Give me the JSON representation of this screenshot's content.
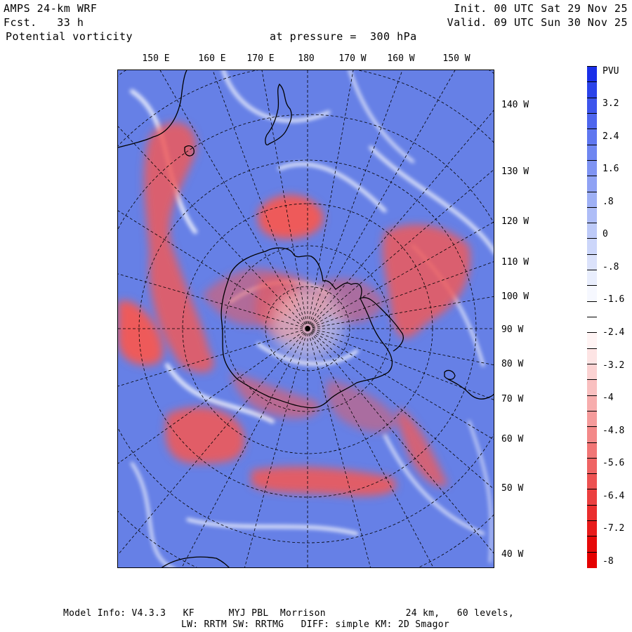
{
  "header": {
    "model": "AMPS 24-km WRF",
    "forecast": "Fcst.   33 h",
    "field": "Potential vorticity",
    "level": "at pressure =  300 hPa",
    "init": "Init. 00 UTC Sat 29 Nov 25",
    "valid": "Valid. 09 UTC Sun 30 Nov 25"
  },
  "map": {
    "top_longitude_labels": [
      "150 E",
      "160 E",
      "170 E",
      "180",
      "170 W",
      "160 W",
      "150 W"
    ],
    "right_longitude_labels": [
      "140 W",
      "130 W",
      "120 W",
      "110 W",
      "100 W",
      "90 W",
      "80 W",
      "70 W",
      "60 W",
      "50 W",
      "40 W"
    ],
    "colors": {
      "positive": "#5f79e6",
      "negative": "#f04848",
      "coast": "#000000",
      "grid": "#000000"
    }
  },
  "colorbar": {
    "units": "PVU",
    "labels": [
      "3.2",
      "2.4",
      "1.6",
      ".8",
      "0",
      "-.8",
      "-1.6",
      "-2.4",
      "-3.2",
      "-4",
      "-4.8",
      "-5.6",
      "-6.4",
      "-7.2",
      "-8"
    ],
    "colors": [
      "#1a2fe8",
      "#2b43ea",
      "#3d55ec",
      "#4e66ee",
      "#5f77f0",
      "#6f86f1",
      "#7f94f3",
      "#8fa2f4",
      "#9eb0f5",
      "#aebdf7",
      "#bdcaf8",
      "#ccd6fa",
      "#dbe2fb",
      "#e9eefd",
      "#f6f8ff",
      "#ffffff",
      "#ffffff",
      "#fff4f4",
      "#fde4e4",
      "#fbd2d2",
      "#f9c0c0",
      "#f7adad",
      "#f59b9b",
      "#f38989",
      "#f17676",
      "#ef6464",
      "#ed5252",
      "#eb3f3f",
      "#ea2d2d",
      "#e81b1b",
      "#e60909",
      "#e40000"
    ]
  },
  "footer": {
    "line1": "Model Info: V4.3.3   KF      MYJ PBL  Morrison              24 km,   60 levels,",
    "line2": "LW: RRTM SW: RRTMG   DIFF: simple KM: 2D Smagor"
  }
}
